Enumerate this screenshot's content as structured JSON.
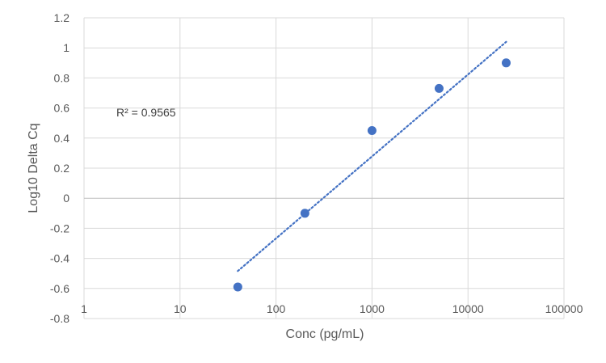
{
  "chart_data": {
    "type": "scatter",
    "xlabel": "Conc (pg/mL)",
    "ylabel": "Log10 Delta Cq",
    "x_scale": "log",
    "xlim": [
      1,
      100000
    ],
    "ylim": [
      -0.8,
      1.2
    ],
    "x_ticks": [
      "1",
      "10",
      "100",
      "1000",
      "10000",
      "100000"
    ],
    "y_ticks": [
      "1.2",
      "1",
      "0.8",
      "0.6",
      "0.4",
      "0.2",
      "0",
      "-0.2",
      "-0.4",
      "-0.6",
      "-0.8"
    ],
    "grid": true,
    "legend": "none",
    "series": [
      {
        "x": [
          40,
          200,
          1000,
          5000,
          25000
        ],
        "y": [
          -0.59,
          -0.1,
          0.45,
          0.73,
          0.9
        ],
        "color": "#4472c4"
      }
    ],
    "trendline": {
      "type": "log",
      "style": "dotted",
      "color": "#4472c4",
      "x_range": [
        40,
        25000
      ],
      "label": "R² = 0.9565"
    }
  }
}
